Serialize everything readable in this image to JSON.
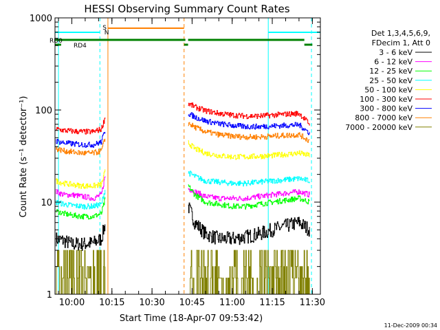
{
  "chart_data": {
    "type": "line",
    "title": "HESSI Observing Summary Count Rates",
    "xlabel": "Start Time (18-Apr-07 09:53:42)",
    "ylabel": "Count Rate (s⁻¹ detector⁻¹)",
    "footer": "11-Dec-2009 00:34",
    "yscale": "log",
    "ylim": [
      1,
      1000
    ],
    "xlim": [
      "09:53:42",
      "11:33:00"
    ],
    "x_ticks": [
      "10:00",
      "10:15",
      "10:30",
      "10:45",
      "11:00",
      "11:15",
      "11:30"
    ],
    "y_ticks": [
      "1",
      "10",
      "100",
      "1000"
    ],
    "legend": {
      "header": [
        "Det 1,3,4,5,6,9,",
        "FDecim 1, Att 0"
      ],
      "placement": "right"
    },
    "flags": [
      {
        "label": "S",
        "color": "#ff8000"
      },
      {
        "label": "N",
        "color": "#00ffff"
      },
      {
        "label": "RD0",
        "color": "#008000"
      },
      {
        "label": "RD4",
        "color": "#008000"
      }
    ],
    "vlines": [
      {
        "time": "09:55:00",
        "color": "#00ffff",
        "style": "solid"
      },
      {
        "time": "10:10:30",
        "color": "#00ffff",
        "style": "dashed"
      },
      {
        "time": "10:13:30",
        "color": "#ff8000",
        "style": "solid"
      },
      {
        "time": "10:42:00",
        "color": "#ff8000",
        "style": "dashed"
      },
      {
        "time": "11:13:30",
        "color": "#00ffff",
        "style": "solid"
      },
      {
        "time": "11:29:40",
        "color": "#00ffff",
        "style": "dashed"
      }
    ],
    "segments": [
      {
        "start": "09:53:42",
        "end": "10:12:30"
      },
      {
        "start": "10:43:30",
        "end": "11:29:40"
      }
    ],
    "series": [
      {
        "name": "3 - 6 keV",
        "color": "#000000",
        "seg1": {
          "x": [
            "09:54",
            "09:57",
            "10:00",
            "10:04",
            "10:08",
            "10:11",
            "10:12:30"
          ],
          "y": [
            4,
            3.8,
            3.5,
            3.5,
            3.6,
            4,
            6
          ]
        },
        "seg2": {
          "x": [
            "10:43:30",
            "10:46",
            "10:50",
            "10:55",
            "11:00",
            "11:05",
            "11:10",
            "11:15",
            "11:20",
            "11:25",
            "11:29"
          ],
          "y": [
            9,
            6,
            4.5,
            4,
            4,
            4.2,
            4.5,
            5,
            5.5,
            6,
            5
          ]
        }
      },
      {
        "name": "6 - 12 keV",
        "color": "#ff00ff",
        "seg1": {
          "x": [
            "09:54",
            "09:57",
            "10:00",
            "10:04",
            "10:08",
            "10:11",
            "10:12:30"
          ],
          "y": [
            13,
            12,
            12,
            11.5,
            11,
            12,
            20
          ]
        },
        "seg2": {
          "x": [
            "10:43:30",
            "10:46",
            "10:50",
            "10:55",
            "11:00",
            "11:05",
            "11:10",
            "11:15",
            "11:20",
            "11:25",
            "11:29"
          ],
          "y": [
            14,
            13,
            11.5,
            11,
            11,
            11,
            11.5,
            12,
            12.5,
            13,
            12
          ]
        }
      },
      {
        "name": "12 - 25 keV",
        "color": "#00ff00",
        "seg1": {
          "x": [
            "09:54",
            "09:57",
            "10:00",
            "10:04",
            "10:08",
            "10:11",
            "10:12:30"
          ],
          "y": [
            8,
            7.5,
            7.2,
            7,
            7,
            7.5,
            11
          ]
        },
        "seg2": {
          "x": [
            "10:43:30",
            "10:46",
            "10:50",
            "10:55",
            "11:00",
            "11:05",
            "11:10",
            "11:15",
            "11:20",
            "11:25",
            "11:29"
          ],
          "y": [
            15,
            12,
            10,
            9.5,
            9,
            9,
            9.5,
            10,
            10.5,
            11,
            10
          ]
        }
      },
      {
        "name": "25 - 50 keV",
        "color": "#00ffff",
        "seg1": {
          "x": [
            "09:54",
            "09:57",
            "10:00",
            "10:04",
            "10:08",
            "10:11",
            "10:12:30"
          ],
          "y": [
            10,
            9.5,
            9.2,
            9,
            9,
            9.5,
            14
          ]
        },
        "seg2": {
          "x": [
            "10:43:30",
            "10:46",
            "10:50",
            "10:55",
            "11:00",
            "11:05",
            "11:10",
            "11:15",
            "11:20",
            "11:25",
            "11:29"
          ],
          "y": [
            21,
            19,
            17,
            16.5,
            16,
            16,
            16.5,
            17,
            17.5,
            18,
            17
          ]
        }
      },
      {
        "name": "50 - 100 keV",
        "color": "#ffff00",
        "seg1": {
          "x": [
            "09:54",
            "09:57",
            "10:00",
            "10:04",
            "10:08",
            "10:11",
            "10:12:30"
          ],
          "y": [
            17,
            16,
            15.5,
            15,
            15,
            15.5,
            22
          ]
        },
        "seg2": {
          "x": [
            "10:43:30",
            "10:46",
            "10:50",
            "10:55",
            "11:00",
            "11:05",
            "11:10",
            "11:15",
            "11:20",
            "11:25",
            "11:29"
          ],
          "y": [
            44,
            38,
            34,
            32,
            31,
            31,
            31.5,
            32,
            33,
            34,
            32
          ]
        }
      },
      {
        "name": "100 - 300 keV",
        "color": "#ff0000",
        "seg1": {
          "x": [
            "09:54",
            "09:57",
            "10:00",
            "10:04",
            "10:08",
            "10:11",
            "10:12:30"
          ],
          "y": [
            62,
            60,
            59,
            58,
            58,
            62,
            85
          ]
        },
        "seg2": {
          "x": [
            "10:43:30",
            "10:46",
            "10:50",
            "10:55",
            "11:00",
            "11:05",
            "11:10",
            "11:15",
            "11:20",
            "11:25",
            "11:29"
          ],
          "y": [
            118,
            108,
            98,
            92,
            88,
            86,
            86,
            88,
            90,
            92,
            70
          ]
        }
      },
      {
        "name": "300 - 800 keV",
        "color": "#0000ff",
        "seg1": {
          "x": [
            "09:54",
            "09:57",
            "10:00",
            "10:04",
            "10:08",
            "10:11",
            "10:12:30"
          ],
          "y": [
            46,
            44,
            43,
            42,
            42,
            45,
            62
          ]
        },
        "seg2": {
          "x": [
            "10:43:30",
            "10:46",
            "10:50",
            "10:55",
            "11:00",
            "11:05",
            "11:10",
            "11:15",
            "11:20",
            "11:25",
            "11:29"
          ],
          "y": [
            92,
            84,
            76,
            71,
            68,
            66,
            66,
            67,
            68,
            69,
            56
          ]
        }
      },
      {
        "name": "800 - 7000 keV",
        "color": "#ff8000",
        "seg1": {
          "x": [
            "09:54",
            "09:57",
            "10:00",
            "10:04",
            "10:08",
            "10:11",
            "10:12:30"
          ],
          "y": [
            38,
            36,
            35,
            34,
            34,
            36,
            50
          ]
        },
        "seg2": {
          "x": [
            "10:43:30",
            "10:46",
            "10:50",
            "10:55",
            "11:00",
            "11:05",
            "11:10",
            "11:15",
            "11:20",
            "11:25",
            "11:29"
          ],
          "y": [
            72,
            65,
            58,
            54,
            52,
            51,
            51,
            52,
            53,
            54,
            46
          ]
        }
      },
      {
        "name": "7000 - 20000 keV",
        "color": "#808000",
        "seg1": {
          "x": [
            "09:54",
            "09:57",
            "10:00",
            "10:04",
            "10:08",
            "10:11",
            "10:12:30"
          ],
          "y": [
            2,
            2,
            1.6,
            1.5,
            1.6,
            1.8,
            2
          ]
        },
        "seg2": {
          "x": [
            "10:43:30",
            "10:46",
            "10:50",
            "10:55",
            "11:00",
            "11:05",
            "11:10",
            "11:15",
            "11:20",
            "11:25",
            "11:29"
          ],
          "y": [
            2.2,
            2,
            1.6,
            1.5,
            1.5,
            1.6,
            1.8,
            2,
            2.3,
            2.5,
            2
          ]
        }
      }
    ]
  }
}
